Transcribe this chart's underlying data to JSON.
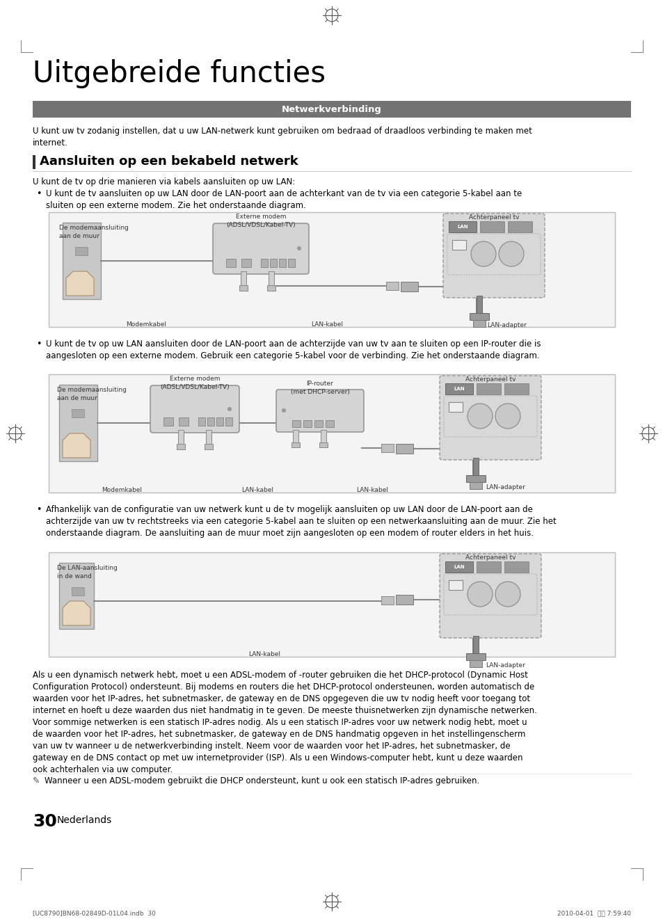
{
  "page_title": "Uitgebreide functies",
  "section_banner": "Netwerkverbinding",
  "section_banner_bg": "#737373",
  "section_banner_color": "#ffffff",
  "intro_text": "U kunt uw tv zodanig instellen, dat u uw LAN-netwerk kunt gebruiken om bedraad of draadloos verbinding te maken met\ninternet.",
  "subsection_title": "Aansluiten op een bekabeld netwerk",
  "subsection_intro": "U kunt de tv op drie manieren via kabels aansluiten op uw LAN:",
  "bullet1_text": "U kunt de tv aansluiten op uw LAN door de LAN-poort aan de achterkant van de tv via een categorie 5-kabel aan te\nsluiten op een externe modem. Zie het onderstaande diagram.",
  "bullet2_text": "U kunt de tv op uw LAN aansluiten door de LAN-poort aan de achterzijde van uw tv aan te sluiten op een IP-router die is\naangesloten op een externe modem. Gebruik een categorie 5-kabel voor de verbinding. Zie het onderstaande diagram.",
  "bullet3_text": "Afhankelijk van de configuratie van uw netwerk kunt u de tv mogelijk aansluiten op uw LAN door de LAN-poort aan de\nachterzijde van uw tv rechtstreeks via een categorie 5-kabel aan te sluiten op een netwerkaansluiting aan de muur. Zie het\nonderstaande diagram. De aansluiting aan de muur moet zijn aangesloten op een modem of router elders in het huis.",
  "body_text": "Als u een dynamisch netwerk hebt, moet u een ADSL-modem of -router gebruiken die het DHCP-protocol (Dynamic Host\nConfiguration Protocol) ondersteunt. Bij modems en routers die het DHCP-protocol ondersteunen, worden automatisch de\nwaarden voor het IP-adres, het subnetmasker, de gateway en de DNS opgegeven die uw tv nodig heeft voor toegang tot\ninternet en hoeft u deze waarden dus niet handmatig in te geven. De meeste thuisnetwerken zijn dynamische netwerken.\nVoor sommige netwerken is een statisch IP-adres nodig. Als u een statisch IP-adres voor uw netwerk nodig hebt, moet u\nde waarden voor het IP-adres, het subnetmasker, de gateway en de DNS handmatig opgeven in het instellingenscherm\nvan uw tv wanneer u de netwerkverbinding instelt. Neem voor de waarden voor het IP-adres, het subnetmasker, de\ngateway en de DNS contact op met uw internetprovider (ISP). Als u een Windows-computer hebt, kunt u deze waarden\nook achterhalen via uw computer.",
  "note_text": "Wanneer u een ADSL-modem gebruikt die DHCP ondersteunt, kunt u ook een statisch IP-adres gebruiken.",
  "page_number": "30",
  "page_lang": "Nederlands",
  "footer_left": "[UC8790]BN68-02849D-01L04.indb  30",
  "footer_right": "2010-04-01  오후 7:59:40",
  "d1_wall_label": "De modemaansluiting\naan de muur",
  "d1_modem_label": "Externe modem\n(ADSL/VDSL/Kabel-TV)",
  "d1_tv_label": "Achterpaneel tv",
  "d1_lan_adapter": "LAN-adapter",
  "d1_modem_cable": "Modemkabel",
  "d1_lan_cable": "LAN-kabel",
  "d2_wall_label": "De modemaansluiting\naan de muur",
  "d2_modem_label": "Externe modem\n(ADSL/VDSL/Kabel-TV)",
  "d2_router_label": "IP-router\n(met DHCP-server)",
  "d2_tv_label": "Achterpaneel tv",
  "d2_lan_adapter": "LAN-adapter",
  "d2_modem_cable": "Modemkabel",
  "d2_lan_cable1": "LAN-kabel",
  "d2_lan_cable2": "LAN-kabel",
  "d3_wall_label": "De LAN-aansluiting\nin de wand",
  "d3_tv_label": "Achterpaneel tv",
  "d3_lan_adapter": "LAN-adapter",
  "d3_lan_cable": "LAN-kabel"
}
